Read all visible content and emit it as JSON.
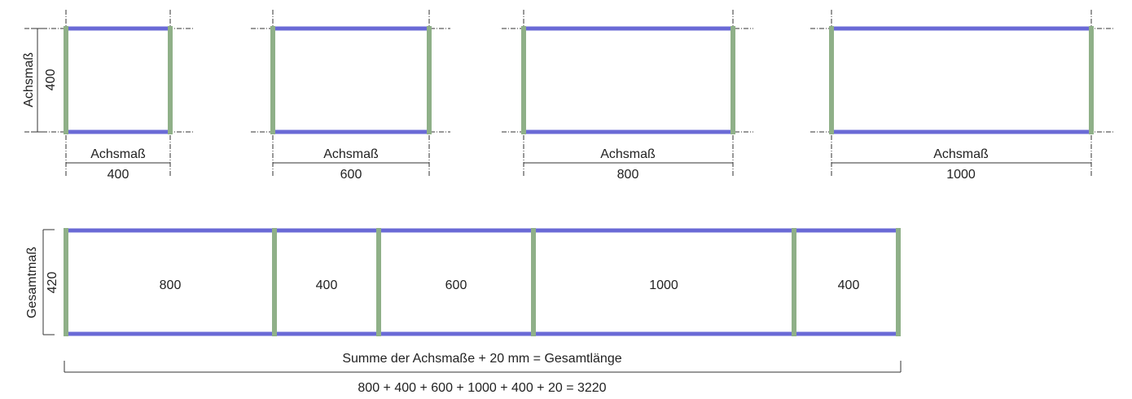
{
  "frames": [
    {
      "width_label": "Achsmaß",
      "width_value": "400",
      "height_label": "Achsmaß",
      "height_value": "400"
    },
    {
      "width_label": "Achsmaß",
      "width_value": "600"
    },
    {
      "width_label": "Achsmaß",
      "width_value": "800"
    },
    {
      "width_label": "Achsmaß",
      "width_value": "1000"
    }
  ],
  "combined": {
    "height_label": "Gesamtmaß",
    "height_value": "420",
    "segments": [
      "800",
      "400",
      "600",
      "1000",
      "400"
    ],
    "sum_label": "Summe der Achsmaße + 20 mm = Gesamtlänge",
    "sum_formula": "800 + 400 + 600 + 1000 + 400 + 20 = 3220"
  },
  "colors": {
    "rail": "#6a6ad6",
    "post": "#8fb088",
    "line": "#333333"
  }
}
